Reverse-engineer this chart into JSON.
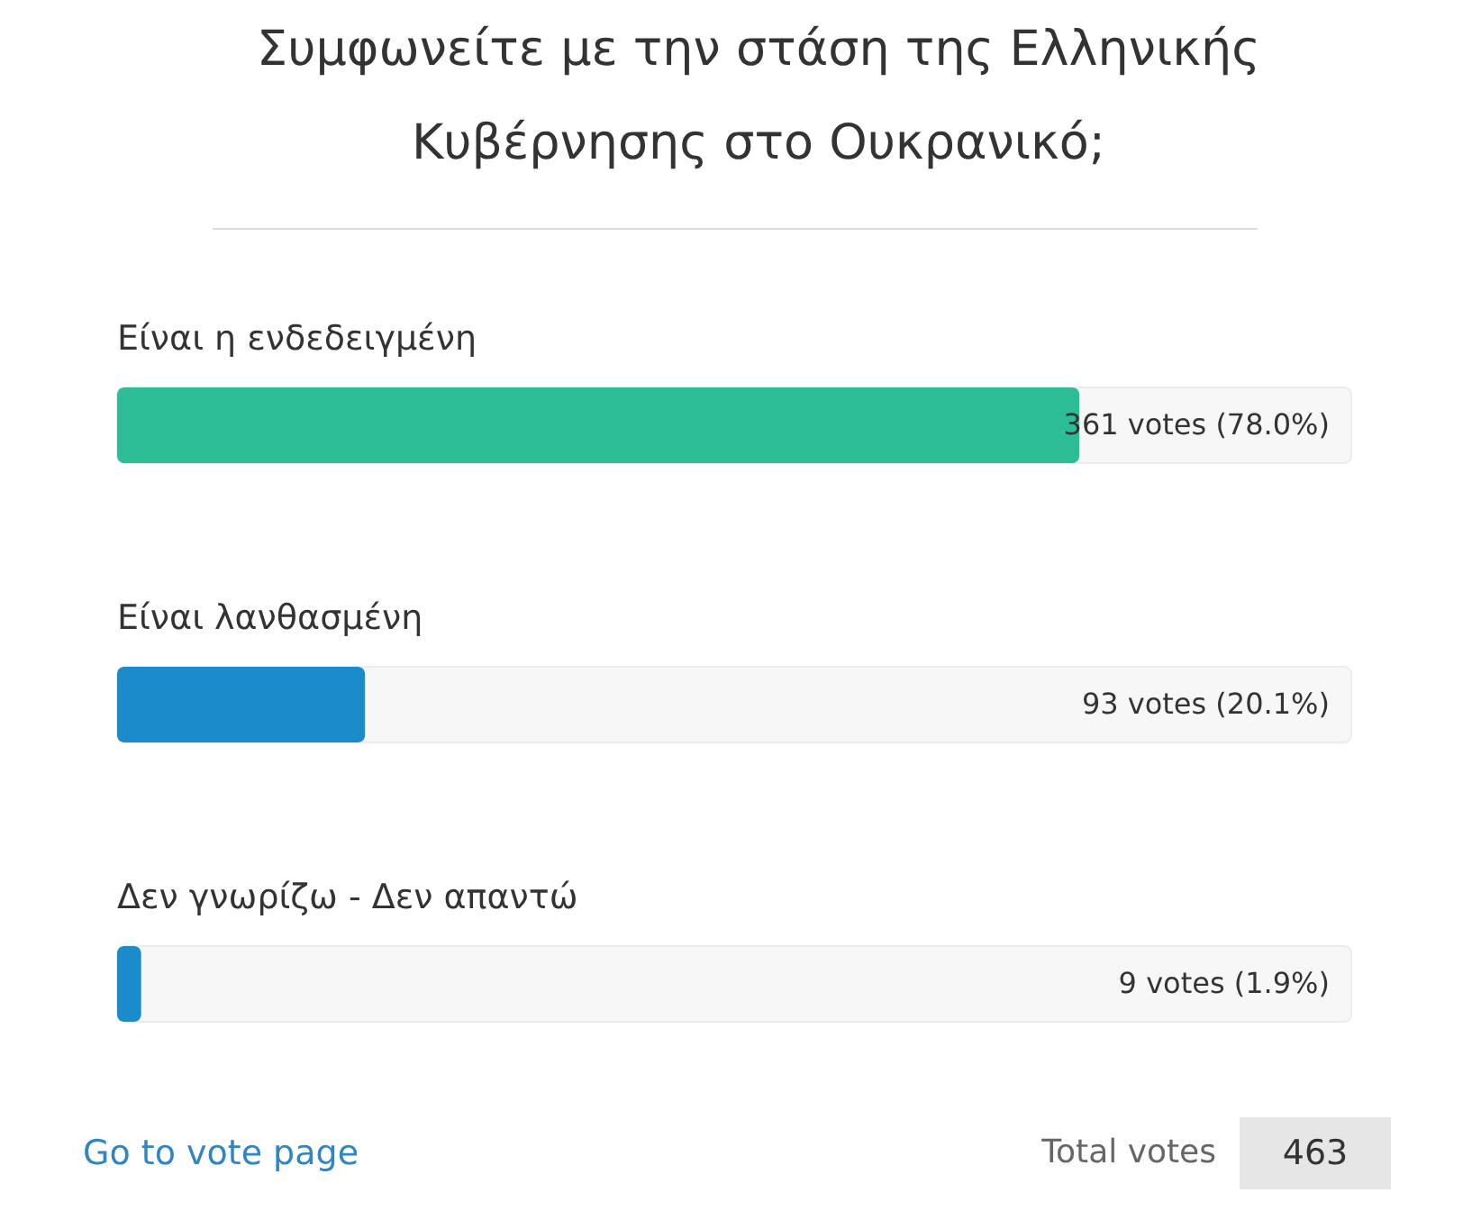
{
  "chart_data": {
    "type": "bar",
    "orientation": "horizontal",
    "title": "Συμφωνείτε με την στάση της Ελληνικής Κυβέρνησης στο Ουκρανικό;",
    "categories": [
      "Είναι η ενδεδειγμένη",
      "Είναι λανθασμένη",
      "Δεν γνωρίζω - Δεν απαντώ"
    ],
    "values": [
      361,
      93,
      9
    ],
    "colors": [
      "#2dbd96",
      "#1b8bcb",
      "#1b8bcb"
    ],
    "value_labels": [
      "361 votes (78.0%)",
      "93 votes (20.1%)",
      "9 votes (1.9%)"
    ],
    "xlim": [
      0,
      463
    ],
    "annotations": [
      "Go to vote page",
      "Total votes",
      "463"
    ]
  }
}
